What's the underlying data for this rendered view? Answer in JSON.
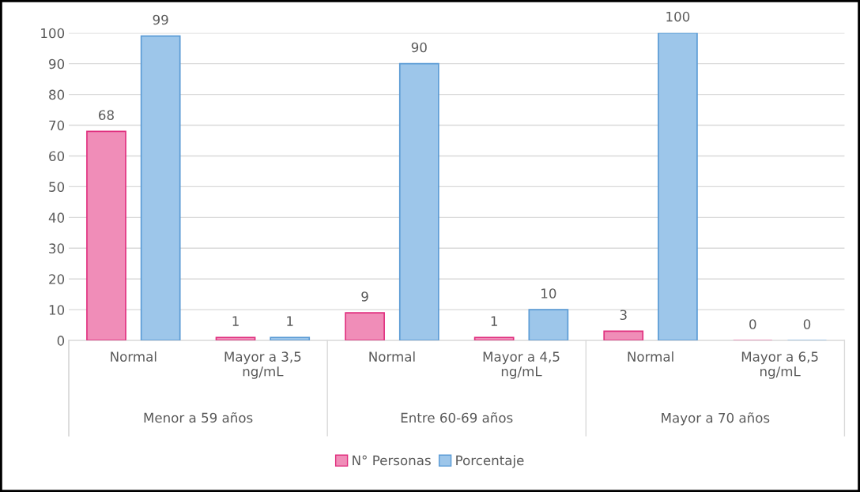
{
  "chart_data": {
    "type": "bar",
    "categories": [
      "Normal",
      "Mayor a 3,5\nng/mL",
      "Normal",
      "Mayor a 4,5\nng/mL",
      "Normal",
      "Mayor a 6,5\nng/mL"
    ],
    "series": [
      {
        "name": "N° Personas",
        "color": "#f08db8",
        "values": [
          68,
          1,
          9,
          1,
          3,
          0
        ]
      },
      {
        "name": "Porcentaje",
        "color": "#9dc6ea",
        "values": [
          99,
          1,
          90,
          10,
          100,
          0
        ]
      }
    ],
    "annotations": [
      "Menor a 59 años",
      "Entre 60-69 años",
      "Mayor a 70 años"
    ],
    "ylim": [
      0,
      100
    ],
    "yticks": [
      0,
      10,
      20,
      30,
      40,
      50,
      60,
      70,
      80,
      90,
      100
    ],
    "grid": "y",
    "legend": "bottom",
    "data_labels": true
  }
}
